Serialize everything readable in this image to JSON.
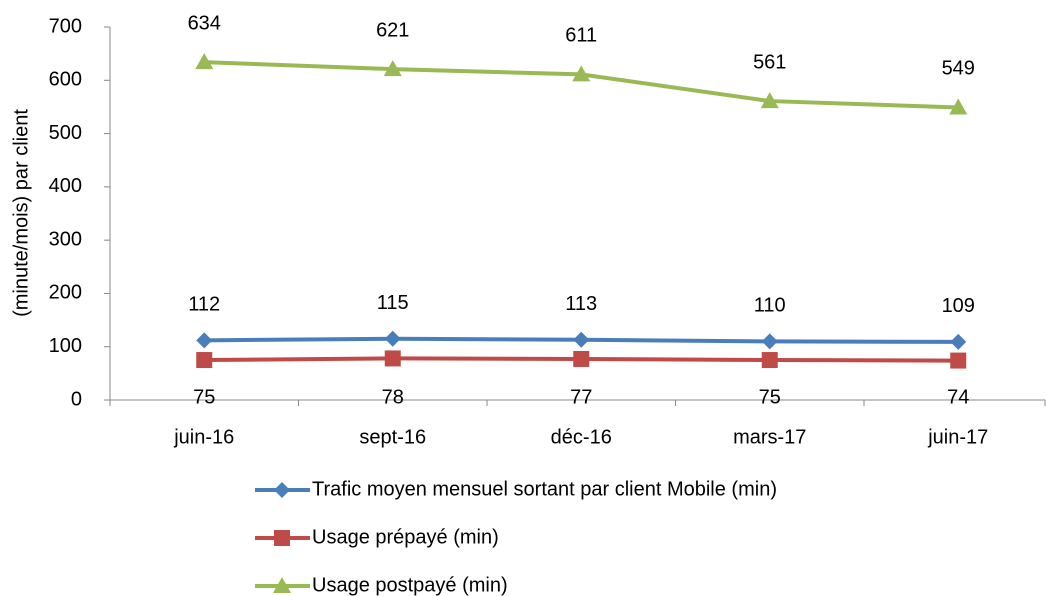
{
  "chart_data": {
    "type": "line",
    "y_label": "(minute/mois) par client",
    "categories": [
      "juin-16",
      "sept-16",
      "déc-16",
      "mars-17",
      "juin-17"
    ],
    "series": [
      {
        "name": "Trafic moyen mensuel sortant par client Mobile (min)",
        "color": "#4a7ebb",
        "marker": "diamond",
        "values": [
          112,
          115,
          113,
          110,
          109
        ]
      },
      {
        "name": "Usage prépayé (min)",
        "color": "#be4b48",
        "marker": "square",
        "values": [
          75,
          78,
          77,
          75,
          74
        ]
      },
      {
        "name": "Usage postpayé (min)",
        "color": "#98b954",
        "marker": "triangle",
        "values": [
          634,
          621,
          611,
          561,
          549
        ]
      }
    ],
    "ylim": [
      0,
      700
    ],
    "yticks": [
      0,
      100,
      200,
      300,
      400,
      500,
      600,
      700
    ],
    "grid": false,
    "legend": "bottom"
  }
}
